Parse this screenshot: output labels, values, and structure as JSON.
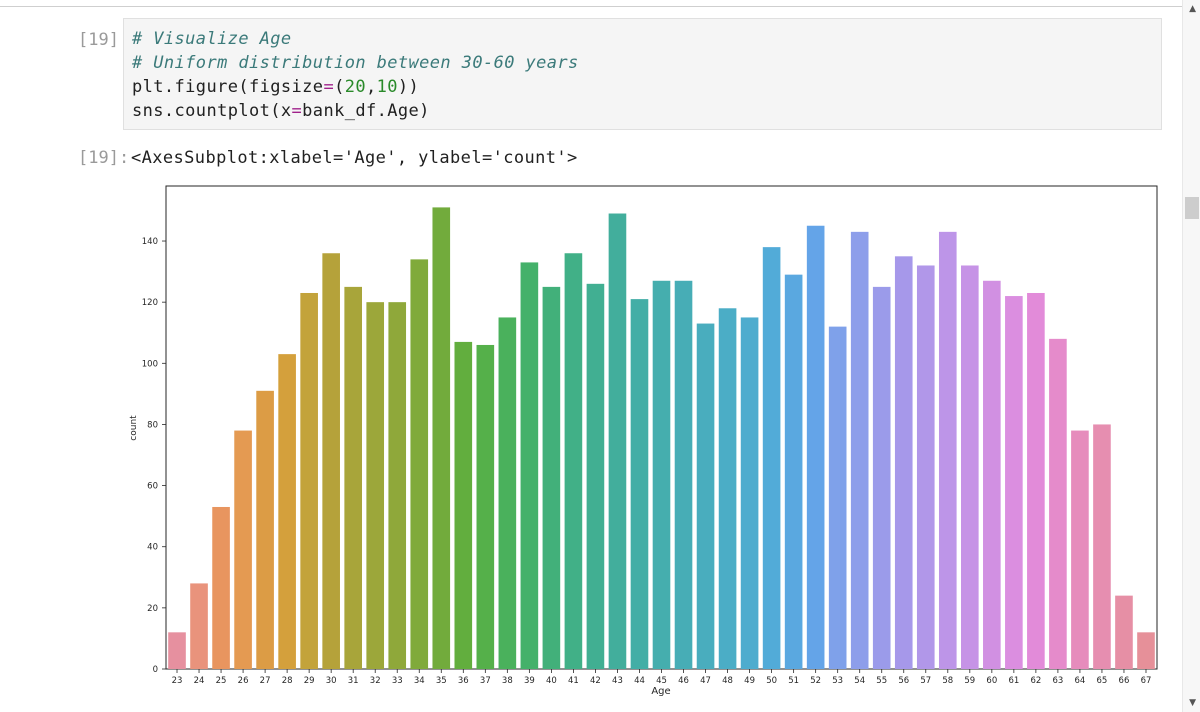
{
  "cell": {
    "in_prompt": "[19]:",
    "out_prompt": "[19]:",
    "code": {
      "line1": "# Visualize Age",
      "line2": "# Uniform distribution between 30-60 years",
      "line3_a": "plt.figure(figsize",
      "line3_op": "=",
      "line3_b": "(",
      "line3_n1": "20",
      "line3_c": ",",
      "line3_n2": "10",
      "line3_d": "))",
      "line4_a": "sns.countplot(x",
      "line4_op": "=",
      "line4_b": "bank_df.Age)"
    },
    "output_text": "<AxesSubplot:xlabel='Age', ylabel='count'>"
  },
  "chart_data": {
    "type": "bar",
    "xlabel": "Age",
    "ylabel": "count",
    "ylim": [
      0,
      158
    ],
    "yticks": [
      0,
      20,
      40,
      60,
      80,
      100,
      120,
      140
    ],
    "grid": false,
    "categories": [
      "23",
      "24",
      "25",
      "26",
      "27",
      "28",
      "29",
      "30",
      "31",
      "32",
      "33",
      "34",
      "35",
      "36",
      "37",
      "38",
      "39",
      "40",
      "41",
      "42",
      "43",
      "44",
      "45",
      "46",
      "47",
      "48",
      "49",
      "50",
      "51",
      "52",
      "53",
      "54",
      "55",
      "56",
      "57",
      "58",
      "59",
      "60",
      "61",
      "62",
      "63",
      "64",
      "65",
      "66",
      "67"
    ],
    "values": [
      12,
      28,
      53,
      78,
      91,
      103,
      123,
      136,
      125,
      120,
      120,
      134,
      151,
      107,
      106,
      115,
      133,
      125,
      136,
      126,
      149,
      121,
      127,
      127,
      113,
      118,
      115,
      138,
      129,
      145,
      112,
      143,
      125,
      135,
      132,
      143,
      132,
      127,
      122,
      123,
      108,
      78,
      80,
      24,
      12
    ],
    "colors": [
      "#e6909f",
      "#e9937c",
      "#e8955f",
      "#e49a52",
      "#dc9c45",
      "#d4a03c",
      "#c3a33b",
      "#b5a23a",
      "#a8a53a",
      "#9ca73a",
      "#8fa83a",
      "#80aa3b",
      "#72ab3c",
      "#62ae3e",
      "#55b04a",
      "#4ab15c",
      "#44b16a",
      "#42b07a",
      "#41b087",
      "#41af92",
      "#42ae9c",
      "#43aea6",
      "#45aeae",
      "#47adb6",
      "#49adbe",
      "#4badc6",
      "#4eacce",
      "#52abd8",
      "#5aa8e0",
      "#64a4e8",
      "#7fa1ea",
      "#8d9eea",
      "#9b9bea",
      "#a698ea",
      "#b197e9",
      "#bd95e8",
      "#c693e6",
      "#d190e2",
      "#db8ee0",
      "#e28bd9",
      "#e58bcb",
      "#e68cbc",
      "#e68eb0",
      "#e68fa5",
      "#e69099"
    ]
  }
}
